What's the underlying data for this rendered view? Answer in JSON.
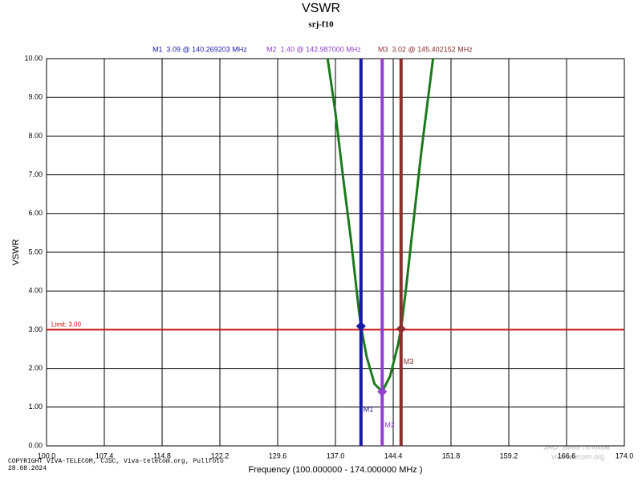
{
  "chart_data": {
    "type": "line",
    "title": "VSWR",
    "subtitle": "srj-f10",
    "x_label": "Frequency (100.000000 - 174.000000 MHz )",
    "y_label": "VSWR",
    "xlim": [
      100,
      174
    ],
    "ylim": [
      0,
      10
    ],
    "xticks": [
      {
        "value": 100,
        "label": "100.0"
      },
      {
        "value": 107.4,
        "label": "107.4"
      },
      {
        "value": 114.8,
        "label": "114.8"
      },
      {
        "value": 122.2,
        "label": "122.2"
      },
      {
        "value": 129.6,
        "label": "129.6"
      },
      {
        "value": 137,
        "label": "137.0"
      },
      {
        "value": 144.4,
        "label": "144.4"
      },
      {
        "value": 151.8,
        "label": "151.8"
      },
      {
        "value": 159.2,
        "label": "159.2"
      },
      {
        "value": 166.6,
        "label": "166.6"
      },
      {
        "value": 174,
        "label": "174.0"
      }
    ],
    "yticks": [
      {
        "value": 0,
        "label": "0.00"
      },
      {
        "value": 1,
        "label": "1.00"
      },
      {
        "value": 2,
        "label": "2.00"
      },
      {
        "value": 3,
        "label": "3.00"
      },
      {
        "value": 4,
        "label": "4.00"
      },
      {
        "value": 5,
        "label": "5.00"
      },
      {
        "value": 6,
        "label": "6.00"
      },
      {
        "value": 7,
        "label": "7.00"
      },
      {
        "value": 8,
        "label": "8.00"
      },
      {
        "value": 9,
        "label": "9.00"
      },
      {
        "value": 10,
        "label": "10.00"
      }
    ],
    "grid": true,
    "x": [
      136.0,
      137.0,
      138.0,
      139.0,
      140.0,
      140.269203,
      141.0,
      142.0,
      142.987,
      144.0,
      145.0,
      145.402152,
      146.0,
      147.0,
      148.0,
      149.0,
      149.5
    ],
    "series": [
      {
        "color": "#1c7a1c",
        "values": [
          10.0,
          8.6,
          6.9,
          5.3,
          3.5,
          3.09,
          2.3,
          1.6,
          1.4,
          1.8,
          2.6,
          3.02,
          4.0,
          5.8,
          7.6,
          9.2,
          10.0
        ]
      }
    ],
    "limit": {
      "value": 3.0,
      "label": "Limit: 3.00",
      "color": "#cc1111"
    },
    "markers": [
      {
        "name": "M1",
        "value": 3.09,
        "frequency": 140.269203,
        "label": "M1  3.09 @ 140.269203 MHz",
        "color": "#1a1aa8"
      },
      {
        "name": "M2",
        "value": 1.4,
        "frequency": 142.987,
        "label": "M2  1.40 @ 142.987000 MHz",
        "color": "#9040d0"
      },
      {
        "name": "M3",
        "value": 3.02,
        "frequency": 145.402152,
        "label": "M3  3.02 @ 145.402152 MHz",
        "color": "#8b2e2e"
      }
    ],
    "footer": [
      "COPYRIGHT VIVA-TELECOM, CJSC, Viva-telecom.org, Pullfoto",
      "28.08.2024"
    ],
    "watermark": [
      "ЗАО \"Вива-Телеком\"",
      "viva-telecom.org"
    ]
  }
}
